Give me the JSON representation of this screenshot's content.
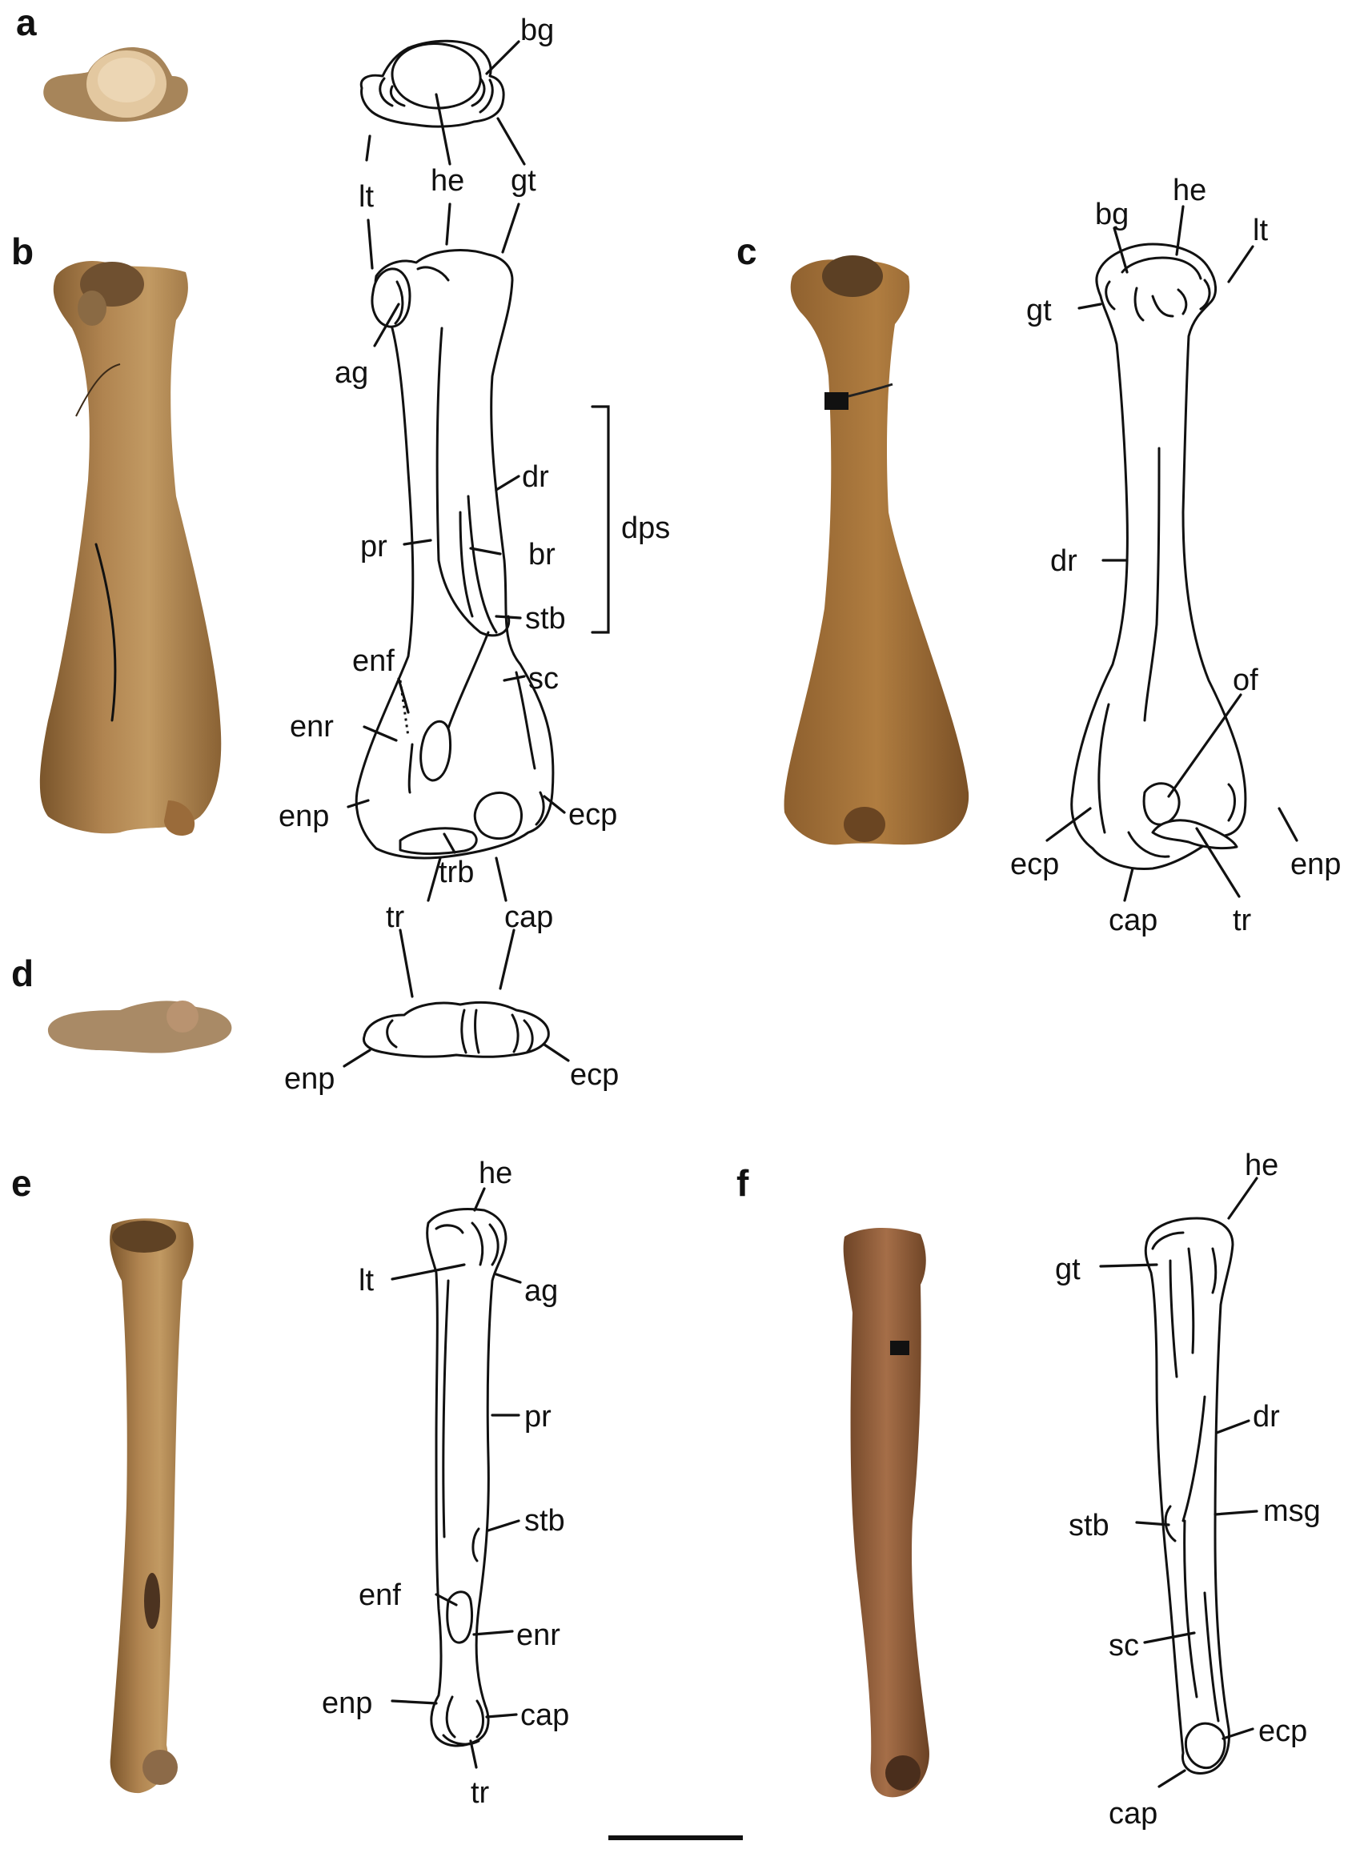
{
  "panels": {
    "a": {
      "letter": "a",
      "labels": {
        "bg": "bg",
        "he": "he",
        "gt": "gt",
        "lt": "lt"
      }
    },
    "b": {
      "letter": "b",
      "labels": {
        "ag": "ag",
        "dr": "dr",
        "pr": "pr",
        "br": "br",
        "dps": "dps",
        "stb": "stb",
        "enf": "enf",
        "sc": "sc",
        "enr": "enr",
        "enp": "enp",
        "ecp": "ecp",
        "trb": "trb",
        "tr": "tr",
        "cap": "cap"
      }
    },
    "c": {
      "letter": "c",
      "labels": {
        "bg": "bg",
        "he": "he",
        "lt": "lt",
        "gt": "gt",
        "dr": "dr",
        "of": "of",
        "ecp": "ecp",
        "enp": "enp",
        "cap": "cap",
        "tr": "tr"
      }
    },
    "d": {
      "letter": "d",
      "labels": {
        "enp": "enp",
        "ecp": "ecp"
      }
    },
    "e": {
      "letter": "e",
      "labels": {
        "he": "he",
        "lt": "lt",
        "ag": "ag",
        "pr": "pr",
        "stb": "stb",
        "enf": "enf",
        "enr": "enr",
        "enp": "enp",
        "cap": "cap",
        "tr": "tr"
      }
    },
    "f": {
      "letter": "f",
      "labels": {
        "he": "he",
        "gt": "gt",
        "dr": "dr",
        "stb": "stb",
        "msg": "msg",
        "sc": "sc",
        "ecp": "ecp",
        "cap": "cap"
      }
    }
  },
  "colors": {
    "bone_light": "#c9a573",
    "bone_mid": "#a97c45",
    "bone_dark": "#7a552b",
    "line": "#111111"
  }
}
